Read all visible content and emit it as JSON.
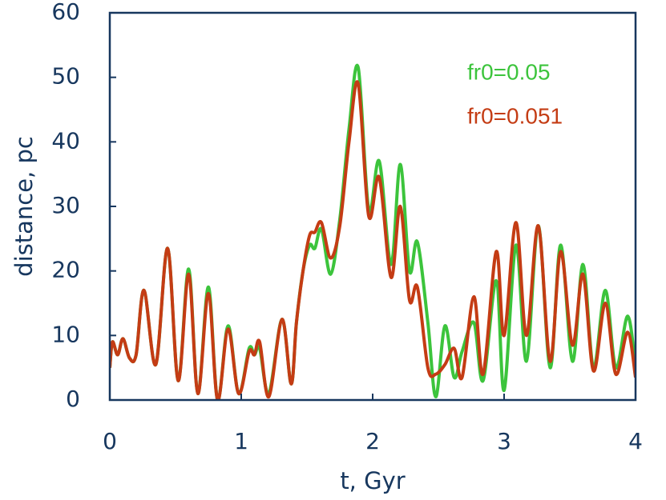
{
  "chart_data": {
    "type": "line",
    "x_label": "t, Gyr",
    "y_label": "distance, pc",
    "x": [
      0,
      0.02,
      0.06,
      0.1,
      0.15,
      0.2,
      0.26,
      0.35,
      0.44,
      0.52,
      0.6,
      0.67,
      0.75,
      0.82,
      0.9,
      0.98,
      1.06,
      1.1,
      1.14,
      1.21,
      1.31,
      1.38,
      1.42,
      1.47,
      1.52,
      1.56,
      1.61,
      1.68,
      1.75,
      1.82,
      1.89,
      1.97,
      2.05,
      2.14,
      2.21,
      2.28,
      2.34,
      2.42,
      2.48,
      2.55,
      2.62,
      2.68,
      2.77,
      2.84,
      2.94,
      3.0,
      3.09,
      3.17,
      3.26,
      3.35,
      3.43,
      3.52,
      3.6,
      3.68,
      3.77,
      3.85,
      3.94,
      4.0
    ],
    "series": [
      {
        "name": "fr0=0.05",
        "color": "#3cc43c",
        "values": [
          5,
          9,
          7,
          9.5,
          6.5,
          7,
          17,
          5.5,
          23.5,
          3,
          20.3,
          1,
          17.5,
          0,
          11.5,
          1,
          8,
          7,
          8,
          1,
          12.5,
          2.5,
          12,
          20,
          24,
          23.5,
          26.5,
          19.5,
          28,
          42,
          51.5,
          29.5,
          37,
          21,
          36.5,
          20,
          24.5,
          12,
          0.5,
          11.5,
          3.5,
          7.5,
          12,
          3,
          18.5,
          1.5,
          24,
          6,
          27,
          5,
          24,
          6,
          21,
          5,
          17,
          5,
          13,
          5
        ]
      },
      {
        "name": "fr0=0.051",
        "color": "#c43c14",
        "values": [
          5,
          9,
          7,
          9.5,
          6.5,
          7,
          17,
          5.5,
          23.5,
          3,
          19.5,
          1,
          16.5,
          0,
          11,
          1,
          7.5,
          7,
          9,
          0.5,
          12.5,
          2.5,
          12,
          20,
          25.5,
          26,
          27.5,
          22,
          27,
          40,
          49,
          28.5,
          34.5,
          19,
          30,
          15.5,
          17.5,
          5,
          4,
          5.5,
          8,
          3.5,
          16,
          4,
          23,
          10,
          27.5,
          10,
          27,
          6,
          23,
          8.5,
          19.5,
          4.5,
          15,
          4,
          10.5,
          3.5
        ]
      }
    ],
    "xlim": [
      0,
      4
    ],
    "xticks": [
      0,
      1,
      2,
      3,
      4
    ],
    "ylim": [
      0,
      60
    ],
    "yticks": [
      0,
      10,
      20,
      30,
      40,
      50,
      60
    ],
    "legend": "upper right",
    "grid": false
  }
}
